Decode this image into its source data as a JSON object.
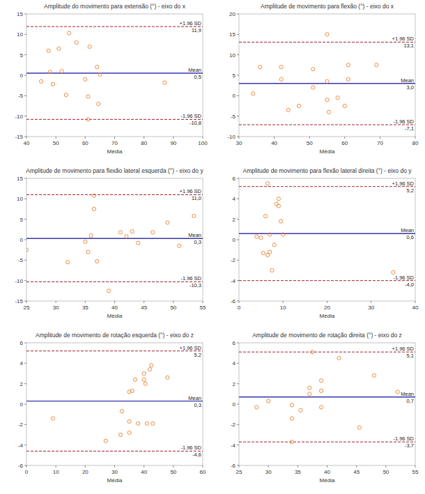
{
  "chart_data": [
    {
      "type": "scatter",
      "title": "Amplitude do movimento para extensão (°) - eixo do x",
      "x_label": "Média",
      "x": [
        45,
        47.5,
        48,
        49,
        51,
        52,
        53.5,
        54.5,
        57,
        60,
        61,
        61.5,
        61,
        64,
        64.5,
        65,
        87
      ],
      "values": [
        -1.5,
        6,
        0.8,
        -2.2,
        6.5,
        1,
        -4.8,
        10.3,
        8,
        -1,
        -5.2,
        7,
        -10.8,
        2,
        -7,
        0.2,
        -1.8
      ],
      "color": "#e8802c",
      "marker": "circle",
      "xlim": [
        40,
        100
      ],
      "xticks": [
        40,
        50,
        60,
        70,
        80,
        90,
        100
      ],
      "ylim": [
        -15,
        15
      ],
      "yticks": [
        -15,
        -10,
        -5,
        0,
        5,
        10,
        15
      ],
      "reference_lines": [
        {
          "label": "+1.96 SD",
          "value": 11.9,
          "value_label": "11,9",
          "color": "#a3212b",
          "line_style": "dashed"
        },
        {
          "label": "Mean",
          "value": 0.5,
          "value_label": "0,5",
          "color": "#3535b0",
          "line_style": "solid"
        },
        {
          "label": "-1.96 SD",
          "value": -10.8,
          "value_label": "-10,8",
          "color": "#a3212b",
          "line_style": "dashed"
        }
      ]
    },
    {
      "type": "scatter",
      "title": "Amplitude de movimento para flexão (°) - eixo do x",
      "x_label": "Média",
      "x": [
        34,
        36,
        42,
        42,
        44,
        47,
        51,
        51,
        55,
        55,
        55,
        55.5,
        58,
        60,
        61,
        61,
        69
      ],
      "values": [
        0.5,
        7,
        4,
        7,
        -3.5,
        -2.5,
        2,
        6.5,
        15,
        3.5,
        -1,
        -4,
        -0.5,
        -2.5,
        7.5,
        4,
        7.5
      ],
      "color": "#e8802c",
      "marker": "circle",
      "xlim": [
        30,
        80
      ],
      "xticks": [
        30,
        40,
        50,
        60,
        70,
        80
      ],
      "ylim": [
        -10,
        20
      ],
      "yticks": [
        -10,
        -5,
        0,
        5,
        10,
        15,
        20
      ],
      "reference_lines": [
        {
          "label": "+1.96 SD",
          "value": 13.1,
          "value_label": "13,1",
          "color": "#a3212b",
          "line_style": "dashed"
        },
        {
          "label": "Mean",
          "value": 3.0,
          "value_label": "3,0",
          "color": "#3535b0",
          "line_style": "solid"
        },
        {
          "label": "-1.96 SD",
          "value": -7.1,
          "value_label": "-7,1",
          "color": "#a3212b",
          "line_style": "dashed"
        }
      ]
    },
    {
      "type": "scatter",
      "title": "Amplitude de movimento para flexão lateral esquerda (°) - eixo do y",
      "x_label": "Média",
      "x": [
        25,
        32,
        35,
        35.5,
        36,
        36.5,
        36.5,
        37,
        39,
        41,
        42,
        43,
        44,
        46.5,
        49,
        51,
        53.5
      ],
      "values": [
        -2.5,
        -5.5,
        -0.5,
        -3,
        1,
        10.8,
        7.5,
        -5.3,
        -12.5,
        1.8,
        0.8,
        2,
        -0.8,
        1.8,
        4.2,
        -1.5,
        5.8
      ],
      "color": "#e8802c",
      "marker": "circle",
      "xlim": [
        25,
        55
      ],
      "xticks": [
        25,
        30,
        35,
        40,
        45,
        50,
        55
      ],
      "ylim": [
        -15,
        15
      ],
      "yticks": [
        -15,
        -10,
        -5,
        0,
        5,
        10,
        15
      ],
      "reference_lines": [
        {
          "label": "+1.96 SD",
          "value": 11.0,
          "value_label": "11,0",
          "color": "#a3212b",
          "line_style": "dashed"
        },
        {
          "label": "Mean",
          "value": 0.3,
          "value_label": "0,3",
          "color": "#3535b0",
          "line_style": "solid"
        },
        {
          "label": "-1.96 SD",
          "value": -10.3,
          "value_label": "-10,3",
          "color": "#a3212b",
          "line_style": "dashed"
        }
      ]
    },
    {
      "type": "scatter",
      "title": "Amplitude de movimento para flexão lateral direita (°) - eixo do y",
      "x_label": "Média",
      "x": [
        4,
        5,
        5.5,
        6,
        6.5,
        6.5,
        7,
        7,
        7.5,
        8,
        8.5,
        9,
        9,
        9.5,
        10,
        35
      ],
      "values": [
        0.3,
        0.2,
        -1.3,
        2.3,
        5.5,
        -1.5,
        -1.2,
        0.5,
        -3,
        -0.5,
        3.5,
        4,
        3.3,
        1.8,
        0.5,
        -3.2
      ],
      "color": "#e8802c",
      "marker": "circle",
      "xlim": [
        0,
        40
      ],
      "xticks": [
        0,
        10,
        20,
        30,
        40
      ],
      "ylim": [
        -6,
        6
      ],
      "yticks": [
        -6,
        -4,
        -2,
        0,
        2,
        4,
        6
      ],
      "reference_lines": [
        {
          "label": "+1.96 SD",
          "value": 5.2,
          "value_label": "5,2",
          "color": "#a3212b",
          "line_style": "dashed"
        },
        {
          "label": "Mean",
          "value": 0.6,
          "value_label": "0,6",
          "color": "#3535b0",
          "line_style": "solid"
        },
        {
          "label": "-1.96 SD",
          "value": -4.0,
          "value_label": "-4,0",
          "color": "#a3212b",
          "line_style": "dashed"
        }
      ]
    },
    {
      "type": "scatter",
      "title": "Amplitude de movimento de rotação esquerda (°) - eixo do z",
      "x_label": "Média",
      "x": [
        9,
        27,
        32,
        32.5,
        35,
        35,
        35,
        36,
        37,
        38,
        40,
        40,
        40.5,
        41,
        42,
        42.5,
        43,
        48
      ],
      "values": [
        -1.4,
        -3.6,
        -3,
        -0.7,
        -2.8,
        -1.7,
        1.2,
        1.3,
        2.4,
        -1.9,
        2.4,
        3,
        2,
        -1.9,
        3.4,
        3.8,
        -1.9,
        2.6
      ],
      "color": "#e8802c",
      "marker": "circle",
      "xlim": [
        0,
        60
      ],
      "xticks": [
        0,
        10,
        20,
        30,
        40,
        50,
        60
      ],
      "ylim": [
        -6,
        6
      ],
      "yticks": [
        -6,
        -4,
        -2,
        0,
        2,
        4,
        6
      ],
      "reference_lines": [
        {
          "label": "+1.96 SD",
          "value": 5.2,
          "value_label": "5,2",
          "color": "#a3212b",
          "line_style": "dashed"
        },
        {
          "label": "Mean",
          "value": 0.3,
          "value_label": "0,3",
          "color": "#3535b0",
          "line_style": "solid"
        },
        {
          "label": "-1.96 SD",
          "value": -4.6,
          "value_label": "-4,6",
          "color": "#a3212b",
          "line_style": "dashed"
        }
      ]
    },
    {
      "type": "scatter",
      "title": "Amplitude de movimento de rotação direita (°) - eixo do z",
      "x_label": "Média",
      "x": [
        28,
        30,
        34,
        34,
        34,
        35.5,
        37,
        37,
        37.5,
        39,
        39,
        39,
        42,
        45.5,
        48,
        52
      ],
      "values": [
        -0.3,
        0.3,
        -0.1,
        -1.4,
        -3.7,
        -0.6,
        1,
        1.6,
        5.1,
        2.3,
        1.3,
        -0.3,
        4.5,
        -2.3,
        2.8,
        1.2
      ],
      "color": "#e8802c",
      "marker": "circle",
      "xlim": [
        25,
        55
      ],
      "xticks": [
        25,
        30,
        35,
        40,
        45,
        50,
        55
      ],
      "ylim": [
        -6,
        6
      ],
      "yticks": [
        -6,
        -4,
        -2,
        0,
        2,
        4,
        6
      ],
      "reference_lines": [
        {
          "label": "+1.96 SD",
          "value": 5.1,
          "value_label": "5,1",
          "color": "#a3212b",
          "line_style": "dashed"
        },
        {
          "label": "Mean",
          "value": 0.7,
          "value_label": "0,7",
          "color": "#3535b0",
          "line_style": "solid"
        },
        {
          "label": "-1.96 SD",
          "value": -3.7,
          "value_label": "-3,7",
          "color": "#a3212b",
          "line_style": "dashed"
        }
      ]
    }
  ]
}
